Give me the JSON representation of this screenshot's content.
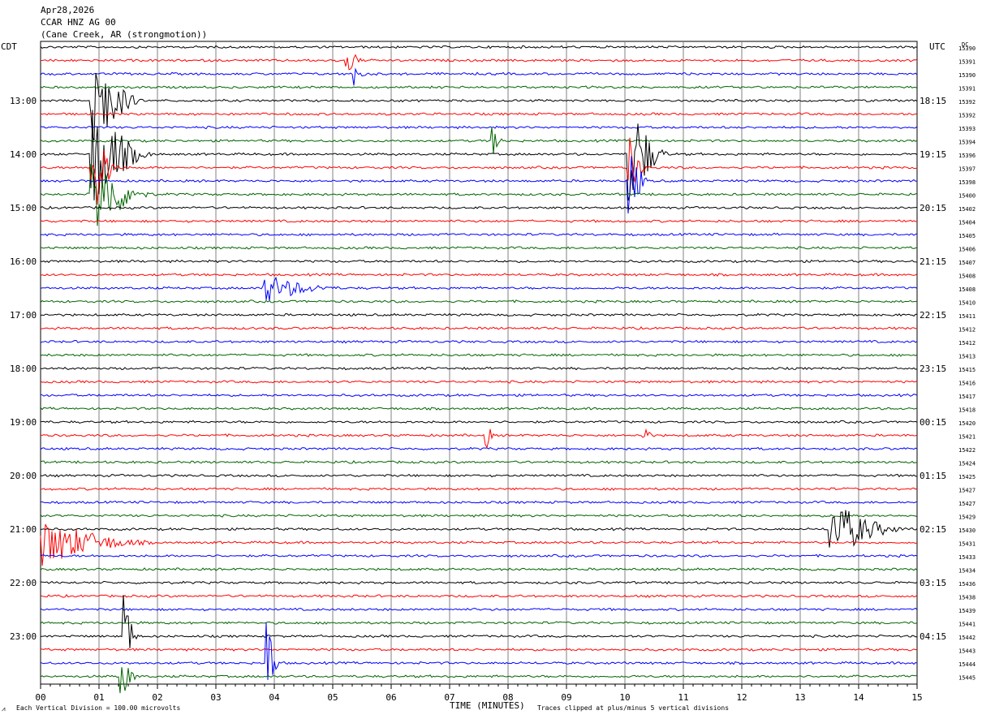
{
  "header": {
    "date": "Apr28,2026",
    "station": "CCAR HNZ AG 00",
    "location": "(Cane Creek, AR (strongmotion))"
  },
  "left_tz": "CDT",
  "right_tz": "UTC",
  "dc_header": "DC",
  "footer": {
    "scale_mark": "⩘",
    "scale_note": "Each Vertical Division =  100.00 microvolts",
    "xlabel": "TIME (MINUTES)",
    "clip_note": "Traces clipped at plus/minus 5 vertical divisions"
  },
  "chart_data": {
    "type": "line",
    "title": "CCAR HNZ AG 00",
    "xlabel": "TIME (MINUTES)",
    "x_ticks": [
      "00",
      "01",
      "02",
      "03",
      "04",
      "05",
      "06",
      "07",
      "08",
      "09",
      "10",
      "11",
      "12",
      "13",
      "14",
      "15"
    ],
    "xlim": [
      0,
      15
    ],
    "grid": true,
    "trace_colors": [
      "#000000",
      "#ff0000",
      "#0000ff",
      "#006400"
    ],
    "left_hour_labels": [
      "13:00",
      "14:00",
      "15:00",
      "16:00",
      "17:00",
      "18:00",
      "19:00",
      "20:00",
      "21:00",
      "22:00",
      "23:00"
    ],
    "right_hour_labels": [
      "18:15",
      "19:15",
      "20:15",
      "21:15",
      "22:15",
      "23:15",
      "00:15",
      "01:15",
      "02:15",
      "03:15",
      "04:15"
    ],
    "dc_values": [
      15390,
      15391,
      15390,
      15391,
      15392,
      15392,
      15393,
      15394,
      15396,
      15397,
      15398,
      15400,
      15402,
      15404,
      15405,
      15406,
      15407,
      15408,
      15408,
      15410,
      15411,
      15412,
      15412,
      15413,
      15415,
      15416,
      15417,
      15418,
      15420,
      15421,
      15422,
      15424,
      15425,
      15427,
      15427,
      15429,
      15430,
      15431,
      15433,
      15434,
      15436,
      15438,
      15439,
      15441,
      15442,
      15443,
      15444,
      15445
    ],
    "events": [
      {
        "trace": 4,
        "minute": 0.85,
        "amp": 5,
        "dur": 1.0
      },
      {
        "trace": 8,
        "minute": 0.85,
        "amp": 5,
        "dur": 1.2
      },
      {
        "trace": 9,
        "minute": 0.85,
        "amp": 5,
        "dur": 0.6
      },
      {
        "trace": 11,
        "minute": 0.85,
        "amp": 4,
        "dur": 1.2
      },
      {
        "trace": 1,
        "minute": 5.2,
        "amp": 1.5,
        "dur": 0.4
      },
      {
        "trace": 2,
        "minute": 5.35,
        "amp": 1,
        "dur": 0.3
      },
      {
        "trace": 7,
        "minute": 7.7,
        "amp": 1.5,
        "dur": 0.3
      },
      {
        "trace": 8,
        "minute": 10.05,
        "amp": 5,
        "dur": 0.8
      },
      {
        "trace": 9,
        "minute": 10.05,
        "amp": 3,
        "dur": 0.4
      },
      {
        "trace": 10,
        "minute": 10.05,
        "amp": 4,
        "dur": 0.4
      },
      {
        "trace": 18,
        "minute": 3.8,
        "amp": 1.2,
        "dur": 1.5
      },
      {
        "trace": 29,
        "minute": 7.6,
        "amp": 1.5,
        "dur": 0.2
      },
      {
        "trace": 29,
        "minute": 10.3,
        "amp": 1.5,
        "dur": 0.2
      },
      {
        "trace": 36,
        "minute": 13.5,
        "amp": 2.5,
        "dur": 1.5
      },
      {
        "trace": 37,
        "minute": 0.0,
        "amp": 2,
        "dur": 2.2
      },
      {
        "trace": 44,
        "minute": 1.4,
        "amp": 5,
        "dur": 0.3
      },
      {
        "trace": 46,
        "minute": 3.85,
        "amp": 5,
        "dur": 0.3
      },
      {
        "trace": 47,
        "minute": 1.35,
        "amp": 2,
        "dur": 0.4
      }
    ]
  }
}
